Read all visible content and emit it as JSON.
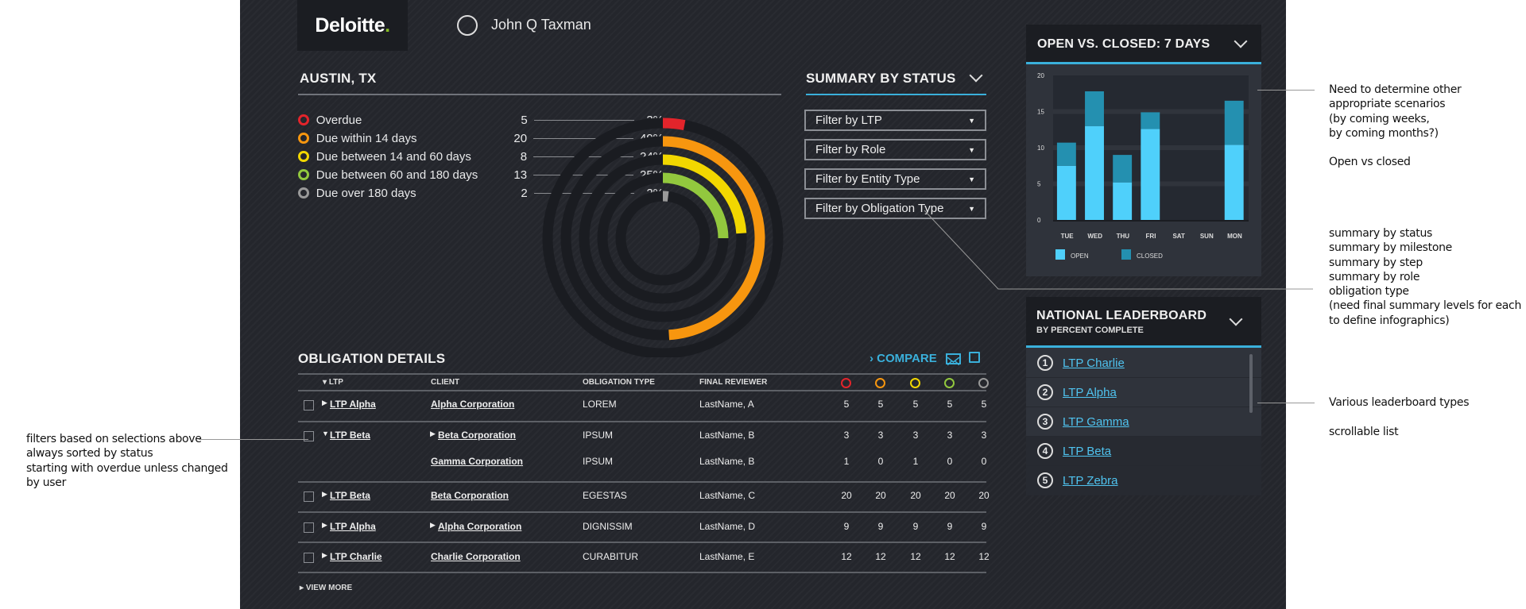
{
  "header": {
    "logo": "Deloitte",
    "user_name": "John Q Taxman"
  },
  "location": {
    "title": "AUSTIN, TX"
  },
  "status_legend": [
    {
      "label": "Overdue",
      "count": "5",
      "pct": "3%",
      "value": 3,
      "color": "#e3242b"
    },
    {
      "label": "Due within 14 days",
      "count": "20",
      "pct": "49%",
      "value": 49,
      "color": "#f7960f"
    },
    {
      "label": "Due between 14 and 60 days",
      "count": "8",
      "pct": "24%",
      "value": 24,
      "color": "#f2d700"
    },
    {
      "label": "Due between 60 and 180 days",
      "count": "13",
      "pct": "25%",
      "value": 25,
      "color": "#92c83e"
    },
    {
      "label": "Due over 180 days",
      "count": "2",
      "pct": "2%",
      "value": 2,
      "color": "#999999"
    }
  ],
  "summary": {
    "title": "SUMMARY BY STATUS",
    "filters": [
      "Filter by LTP",
      "Filter by Role",
      "Filter by Entity Type",
      "Filter by Obligation Type"
    ]
  },
  "chart_data": {
    "type": "bar",
    "stacked": true,
    "title": "OPEN VS. CLOSED: 7 DAYS",
    "categories": [
      "TUE",
      "WED",
      "THU",
      "FRI",
      "SAT",
      "SUN",
      "MON"
    ],
    "series": [
      {
        "name": "OPEN",
        "values": [
          7.5,
          13,
          5.2,
          12.6,
          0,
          0,
          10.4
        ],
        "color": "#4fd0fb"
      },
      {
        "name": "CLOSED",
        "values": [
          3.2,
          4.8,
          3.8,
          2.3,
          0,
          0,
          6.1
        ],
        "color": "#2490b0"
      }
    ],
    "yticks": [
      "0",
      "5",
      "10",
      "15",
      "20"
    ],
    "ylim": [
      0,
      20
    ],
    "grid": true,
    "legend": "bottom-left"
  },
  "leaderboard": {
    "title": "NATIONAL LEADERBOARD",
    "subtitle": "BY PERCENT COMPLETE",
    "items": [
      {
        "rank": "1",
        "name": "LTP Charlie"
      },
      {
        "rank": "2",
        "name": "LTP Alpha"
      },
      {
        "rank": "3",
        "name": "LTP Gamma"
      },
      {
        "rank": "4",
        "name": "LTP Beta"
      },
      {
        "rank": "5",
        "name": "LTP Zebra"
      }
    ]
  },
  "obligations": {
    "title": "OBLIGATION DETAILS",
    "compare": "COMPARE",
    "view_more": "VIEW MORE",
    "columns": [
      "LTP",
      "CLIENT",
      "OBLIGATION TYPE",
      "FINAL REVIEWER"
    ],
    "rows": [
      {
        "ltp": "LTP Alpha",
        "client": "Alpha Corporation",
        "type": "LOREM",
        "reviewer": "LastName, A",
        "counts": [
          "5",
          "5",
          "5",
          "5",
          "5"
        ],
        "ltp_arrow": "right",
        "client_arrow": false
      },
      {
        "ltp": "LTP Beta",
        "client": "Beta Corporation",
        "type": "IPSUM",
        "reviewer": "LastName, B",
        "counts": [
          "3",
          "3",
          "3",
          "3",
          "3"
        ],
        "ltp_arrow": "down",
        "client_arrow": true
      },
      {
        "ltp": "",
        "client": "Gamma Corporation",
        "type": "IPSUM",
        "reviewer": "LastName, B",
        "counts": [
          "1",
          "0",
          "1",
          "0",
          "0"
        ],
        "sub": true
      },
      {
        "ltp": "LTP Beta",
        "client": "Beta Corporation",
        "type": "EGESTAS",
        "reviewer": "LastName, C",
        "counts": [
          "20",
          "20",
          "20",
          "20",
          "20"
        ],
        "ltp_arrow": "right",
        "client_arrow": false
      },
      {
        "ltp": "LTP Alpha",
        "client": "Alpha Corporation",
        "type": "DIGNISSIM",
        "reviewer": "LastName, D",
        "counts": [
          "9",
          "9",
          "9",
          "9",
          "9"
        ],
        "ltp_arrow": "right",
        "client_arrow": true
      },
      {
        "ltp": "LTP Charlie",
        "client": "Charlie Corporation",
        "type": "CURABITUR",
        "reviewer": "LastName, E",
        "counts": [
          "12",
          "12",
          "12",
          "12",
          "12"
        ],
        "ltp_arrow": "right",
        "client_arrow": false
      }
    ]
  },
  "notes": {
    "left": [
      "filters based on selections above",
      "always sorted by status",
      "starting with overdue unless changed",
      "by user"
    ],
    "chart": [
      "Need to determine other",
      "appropriate scenarios",
      "(by coming weeks,",
      "by coming months?)",
      "",
      "Open vs closed"
    ],
    "summary": [
      "summary by status",
      "summary by milestone",
      "summary by step",
      "summary by role",
      "obligation type",
      "(need final summary levels for each",
      "to define infographics)"
    ],
    "leaderboard": [
      "Various leaderboard types",
      "",
      "scrollable list"
    ]
  }
}
